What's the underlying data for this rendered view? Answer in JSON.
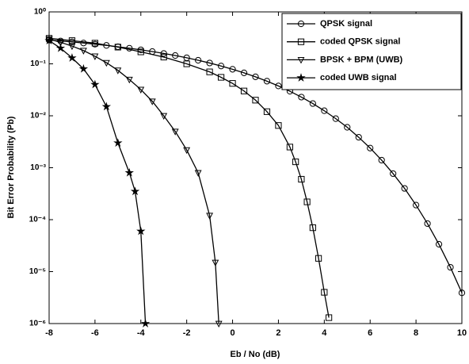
{
  "chart_data": {
    "type": "line",
    "log_y": true,
    "grid": false,
    "legend": "upper right",
    "xlabel": "Eb / No (dB)",
    "ylabel": "Bit Error Probability (Pb)",
    "xlim": [
      -8,
      10
    ],
    "xticks": [
      -8,
      -6,
      -4,
      -2,
      0,
      2,
      4,
      6,
      8,
      10
    ],
    "ylim": [
      1e-06,
      1
    ],
    "yticks": [
      {
        "value": 1e-06,
        "label": "10⁻⁶"
      },
      {
        "value": 1e-05,
        "label": "10⁻⁵"
      },
      {
        "value": 0.0001,
        "label": "10⁻⁴"
      },
      {
        "value": 0.001,
        "label": "10⁻³"
      },
      {
        "value": 0.01,
        "label": "10⁻²"
      },
      {
        "value": 0.1,
        "label": "10⁻¹"
      },
      {
        "value": 1,
        "label": "10⁰"
      }
    ],
    "series": [
      {
        "name": "QPSK signal",
        "color": "#000000",
        "marker": "circle",
        "x": [
          -8,
          -7.5,
          -7,
          -6.5,
          -6,
          -5.5,
          -5,
          -4.5,
          -4,
          -3.5,
          -3,
          -2.5,
          -2,
          -1.5,
          -1,
          -0.5,
          0,
          0.5,
          1,
          1.5,
          2,
          2.5,
          3,
          3.5,
          4,
          4.5,
          5,
          5.5,
          6,
          6.5,
          7,
          7.5,
          8,
          8.5,
          9,
          9.5,
          10
        ],
        "values": [
          0.2867,
          0.2755,
          0.2638,
          0.2517,
          0.2392,
          0.2264,
          0.2132,
          0.1998,
          0.1861,
          0.1723,
          0.1584,
          0.1445,
          0.1306,
          0.117,
          0.1038,
          0.0909,
          0.0786,
          0.0671,
          0.0563,
          0.0464,
          0.0375,
          0.0297,
          0.0229,
          0.0172,
          0.0125,
          0.0088,
          0.006,
          0.00386,
          0.00239,
          0.0014,
          0.00077,
          0.0004,
          0.000191,
          8.4e-05,
          3.36e-05,
          1.21e-05,
          3.9e-06
        ]
      },
      {
        "name": "coded QPSK signal",
        "color": "#000000",
        "marker": "square",
        "x": [
          -8,
          -7,
          -6,
          -5,
          -4,
          -3,
          -2,
          -1,
          -0.5,
          0,
          0.5,
          1,
          1.5,
          2,
          2.5,
          2.75,
          3,
          3.25,
          3.5,
          3.75,
          4,
          4.2
        ],
        "values": [
          0.31,
          0.28,
          0.25,
          0.21,
          0.17,
          0.135,
          0.1,
          0.07,
          0.055,
          0.042,
          0.03,
          0.02,
          0.012,
          0.0065,
          0.0025,
          0.0013,
          0.0006,
          0.00022,
          7e-05,
          1.8e-05,
          4e-06,
          1.3e-06
        ]
      },
      {
        "name": "BPSK + BPM (UWB)",
        "color": "#000000",
        "marker": "triangle",
        "x": [
          -8,
          -7.5,
          -7,
          -6.5,
          -6,
          -5.5,
          -5,
          -4.5,
          -4,
          -3.5,
          -3,
          -2.5,
          -2,
          -1.5,
          -1,
          -0.75,
          -0.6
        ],
        "values": [
          0.3,
          0.26,
          0.22,
          0.18,
          0.14,
          0.105,
          0.075,
          0.05,
          0.032,
          0.019,
          0.01,
          0.005,
          0.0022,
          0.0008,
          0.00012,
          1.5e-05,
          1e-06
        ]
      },
      {
        "name": "coded UWB signal",
        "color": "#000000",
        "marker": "star",
        "x": [
          -8,
          -7.5,
          -7,
          -6.5,
          -6,
          -5.5,
          -5,
          -4.5,
          -4.25,
          -4,
          -3.8
        ],
        "values": [
          0.28,
          0.2,
          0.13,
          0.08,
          0.04,
          0.015,
          0.003,
          0.0008,
          0.00035,
          6e-05,
          1e-06
        ]
      }
    ]
  }
}
